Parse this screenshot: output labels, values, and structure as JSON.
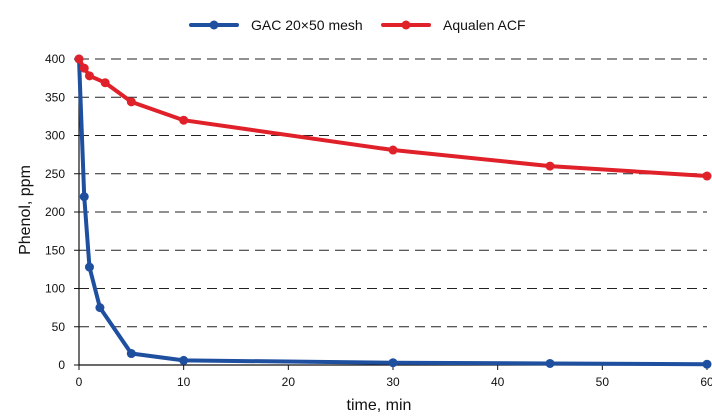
{
  "chart_data": {
    "type": "line",
    "title": "",
    "xlabel": "time, min",
    "ylabel": "Phenol, ppm",
    "xlim": [
      0,
      60
    ],
    "ylim": [
      0,
      400
    ],
    "x_ticks": [
      0,
      10,
      20,
      30,
      40,
      50,
      60
    ],
    "y_ticks": [
      0,
      50,
      100,
      150,
      200,
      250,
      300,
      350,
      400
    ],
    "grid": "horizontal-dashed",
    "legend_position": "top-center",
    "series": [
      {
        "name": "GAC 20×50 mesh",
        "color": "#1f4f9f",
        "points": [
          {
            "x": 0,
            "y": 400
          },
          {
            "x": 0.5,
            "y": 220
          },
          {
            "x": 1,
            "y": 128
          },
          {
            "x": 2,
            "y": 75
          },
          {
            "x": 5,
            "y": 15
          },
          {
            "x": 10,
            "y": 6
          },
          {
            "x": 30,
            "y": 3
          },
          {
            "x": 45,
            "y": 2
          },
          {
            "x": 60,
            "y": 1
          }
        ]
      },
      {
        "name": "Aqualen ACF",
        "color": "#e0212a",
        "points": [
          {
            "x": 0,
            "y": 400
          },
          {
            "x": 0.5,
            "y": 388
          },
          {
            "x": 1,
            "y": 378
          },
          {
            "x": 2.5,
            "y": 369
          },
          {
            "x": 5,
            "y": 344
          },
          {
            "x": 10,
            "y": 320
          },
          {
            "x": 30,
            "y": 281
          },
          {
            "x": 45,
            "y": 260
          },
          {
            "x": 60,
            "y": 247
          }
        ]
      }
    ]
  }
}
